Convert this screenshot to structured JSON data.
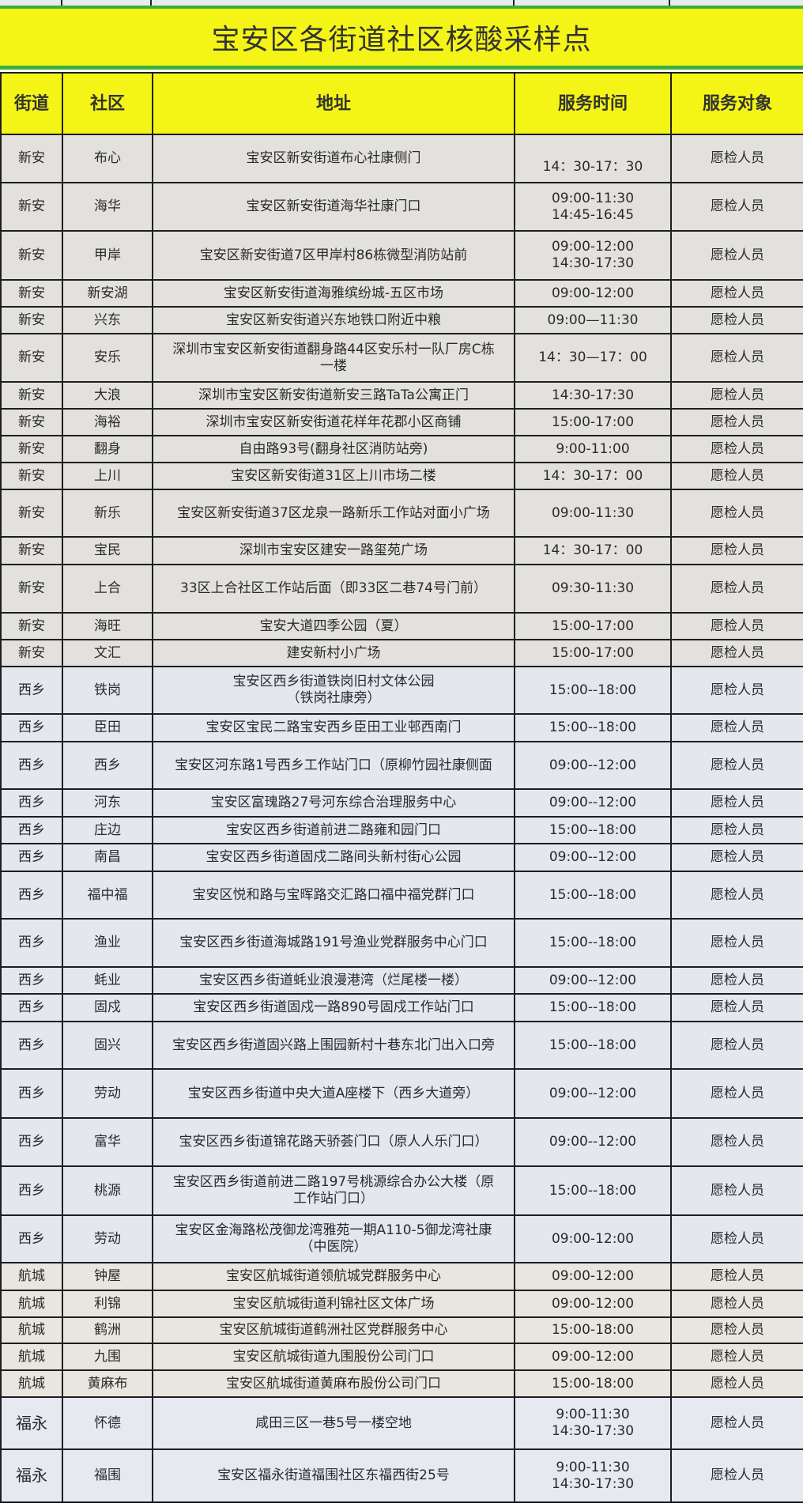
{
  "title": "宝安区各街道社区核酸采样点",
  "colors": {
    "title_bg": "#f4f516",
    "title_border": "#3cae3c",
    "xinan_row": "#e3e1de",
    "xixiang_row": "#e4e7ee",
    "hangcheng_row": "#e9e5df",
    "fuyong_row": "#e6e9f0"
  },
  "headers": [
    "街道",
    "社区",
    "地址",
    "服务时间",
    "服务对象"
  ],
  "rows": [
    {
      "street": "新安",
      "community": "布心",
      "address": "宝安区新安街道布心社康侧门",
      "time": "\n14：30-17：30",
      "target": "愿检人员"
    },
    {
      "street": "新安",
      "community": "海华",
      "address": "宝安区新安街道海华社康门口",
      "time": "09:00-11:30\n14:45-16:45",
      "target": "愿检人员"
    },
    {
      "street": "新安",
      "community": "甲岸",
      "address": "宝安区新安街道7区甲岸村86栋微型消防站前",
      "time": "09:00-12:00\n14:30-17:30",
      "target": "愿检人员"
    },
    {
      "street": "新安",
      "community": "新安湖",
      "address": "宝安区新安街道海雅缤纷城-五区市场",
      "time": "09:00-12:00",
      "target": "愿检人员"
    },
    {
      "street": "新安",
      "community": "兴东",
      "address": "宝安区新安街道兴东地铁口附近中粮",
      "time": "09:00—11:30",
      "target": "愿检人员"
    },
    {
      "street": "新安",
      "community": "安乐",
      "address": "深圳市宝安区新安街道翻身路44区安乐村一队厂房C栋\n一楼",
      "time": "14：30—17：00",
      "target": "愿检人员"
    },
    {
      "street": "新安",
      "community": "大浪",
      "address": "深圳市宝安区新安街道新安三路TaTa公寓正门",
      "time": "14:30-17:30",
      "target": "愿检人员"
    },
    {
      "street": "新安",
      "community": "海裕",
      "address": "深圳市宝安区新安街道花样年花郡小区商铺",
      "time": "15:00-17:00",
      "target": "愿检人员"
    },
    {
      "street": "新安",
      "community": "翻身",
      "address": "自由路93号(翻身社区消防站旁)",
      "time": "9:00-11:00",
      "target": "愿检人员"
    },
    {
      "street": "新安",
      "community": "上川",
      "address": "宝安区新安街道31区上川市场二楼",
      "time": "14：30-17：00",
      "target": "愿检人员"
    },
    {
      "street": "新安",
      "community": "新乐",
      "address": "宝安区新安街道37区龙泉一路新乐工作站对面小广场",
      "time": "09:00-11:30",
      "target": "愿检人员"
    },
    {
      "street": "新安",
      "community": "宝民",
      "address": "深圳市宝安区建安一路玺苑广场",
      "time": "14：30-17：00",
      "target": "愿检人员"
    },
    {
      "street": "新安",
      "community": "上合",
      "address": "33区上合社区工作站后面（即33区二巷74号门前）",
      "time": "09:30-11:30",
      "target": "愿检人员"
    },
    {
      "street": "新安",
      "community": "海旺",
      "address": "宝安大道四季公园（夏）",
      "time": "15:00-17:00",
      "target": "愿检人员"
    },
    {
      "street": "新安",
      "community": "文汇",
      "address": "建安新村小广场",
      "time": "15:00-17:00",
      "target": "愿检人员"
    },
    {
      "street": "西乡",
      "community": "铁岗",
      "address": "宝安区西乡街道铁岗旧村文体公园\n（铁岗社康旁）",
      "time": "15:00--18:00",
      "target": "愿检人员"
    },
    {
      "street": "西乡",
      "community": "臣田",
      "address": "宝安区宝民二路宝安西乡臣田工业邨西南门",
      "time": "15:00--18:00",
      "target": "愿检人员"
    },
    {
      "street": "西乡",
      "community": "西乡",
      "address": "宝安区河东路1号西乡工作站门口（原柳竹园社康侧面",
      "time": "09:00--12:00",
      "target": "愿检人员"
    },
    {
      "street": "西乡",
      "community": "河东",
      "address": "宝安区富瑰路27号河东综合治理服务中心",
      "time": "09:00--12:00",
      "target": "愿检人员"
    },
    {
      "street": "西乡",
      "community": "庄边",
      "address": "宝安区西乡街道前进二路雍和园门口",
      "time": "15:00--18:00",
      "target": "愿检人员"
    },
    {
      "street": "西乡",
      "community": "南昌",
      "address": "宝安区西乡街道固戍二路间头新村街心公园",
      "time": "09:00--12:00",
      "target": "愿检人员"
    },
    {
      "street": "西乡",
      "community": "福中福",
      "address": "宝安区悦和路与宝晖路交汇路口福中福党群门口",
      "time": "15:00--18:00",
      "target": "愿检人员"
    },
    {
      "street": "西乡",
      "community": "渔业",
      "address": "宝安区西乡街道海城路191号渔业党群服务中心门口",
      "time": "15:00--18:00",
      "target": "愿检人员"
    },
    {
      "street": "西乡",
      "community": "蚝业",
      "address": "宝安区西乡街道蚝业浪漫港湾（烂尾楼一楼）",
      "time": "09:00--12:00",
      "target": "愿检人员"
    },
    {
      "street": "西乡",
      "community": "固戍",
      "address": "宝安区西乡街道固戍一路890号固戍工作站门口",
      "time": "15:00--18:00",
      "target": "愿检人员"
    },
    {
      "street": "西乡",
      "community": "固兴",
      "address": "宝安区西乡街道固兴路上围园新村十巷东北门出入口旁",
      "time": "15:00--18:00",
      "target": "愿检人员"
    },
    {
      "street": "西乡",
      "community": "劳动",
      "address": "宝安区西乡街道中央大道A座楼下（西乡大道旁）",
      "time": "09:00--12:00",
      "target": "愿检人员"
    },
    {
      "street": "西乡",
      "community": "富华",
      "address": "宝安区西乡街道锦花路天骄荟门口（原人人乐门口）",
      "time": "09:00--12:00",
      "target": "愿检人员"
    },
    {
      "street": "西乡",
      "community": "桃源",
      "address": "宝安区西乡街道前进二路197号桃源综合办公大楼（原\n工作站门口）",
      "time": "15:00--18:00",
      "target": "愿检人员"
    },
    {
      "street": "西乡",
      "community": "劳动",
      "address": "宝安区金海路松茂御龙湾雅苑一期A110-5御龙湾社康\n（中医院）",
      "time": "09:00-12:00",
      "target": "愿检人员"
    },
    {
      "street": "航城",
      "community": "钟屋",
      "address": "宝安区航城街道领航城党群服务中心",
      "time": "09:00-12:00",
      "target": "愿检人员"
    },
    {
      "street": "航城",
      "community": "利锦",
      "address": "宝安区航城街道利锦社区文体广场",
      "time": "09:00-12:00",
      "target": "愿检人员"
    },
    {
      "street": "航城",
      "community": "鹤洲",
      "address": "宝安区航城街道鹤洲社区党群服务中心",
      "time": "15:00-18:00",
      "target": "愿检人员"
    },
    {
      "street": "航城",
      "community": "九围",
      "address": "宝安区航城街道九围股份公司门口",
      "time": "09:00-12:00",
      "target": "愿检人员"
    },
    {
      "street": "航城",
      "community": "黄麻布",
      "address": "宝安区航城街道黄麻布股份公司门口",
      "time": "15:00-18:00",
      "target": "愿检人员"
    },
    {
      "street": "福永",
      "community": "怀德",
      "address": "咸田三区一巷5号一楼空地",
      "time": "9:00-11:30\n14:30-17:30",
      "target": "愿检人员"
    },
    {
      "street": "福永",
      "community": "福围",
      "address": "宝安区福永街道福围社区东福西街25号",
      "time": "9:00-11:30\n14:30-17:30",
      "target": "愿检人员"
    }
  ]
}
